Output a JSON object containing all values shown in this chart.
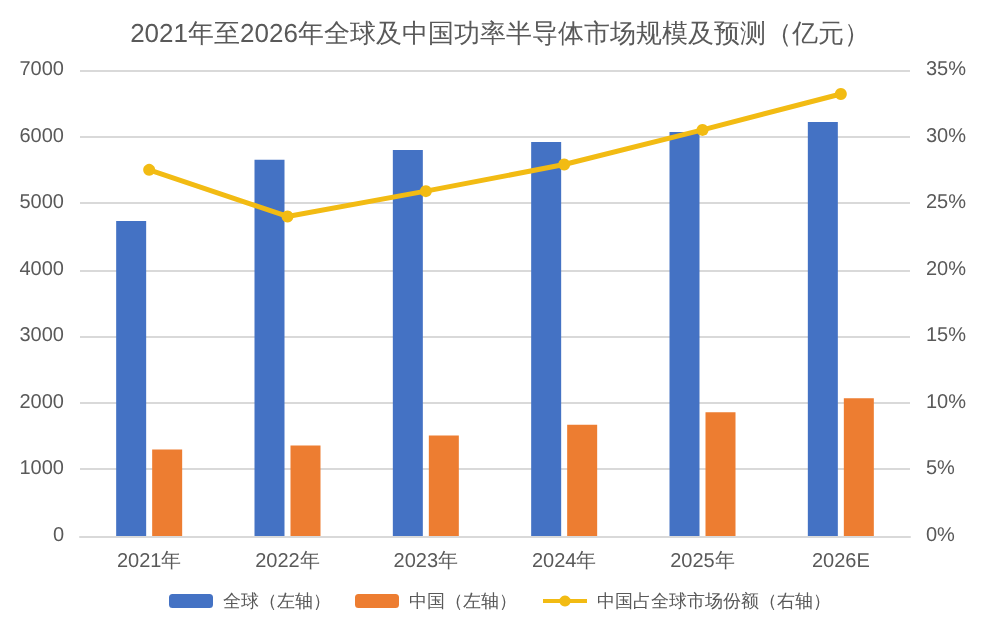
{
  "chart_data": {
    "type": "bar",
    "title": "2021年至2026年全球及中国功率半导体市场规模及预测（亿元）",
    "categories": [
      "2021年",
      "2022年",
      "2023年",
      "2024年",
      "2025年",
      "2026E"
    ],
    "series": [
      {
        "name": "全球（左轴）",
        "color": "#4472c4",
        "values": [
          4730,
          5650,
          5800,
          5920,
          6070,
          6220
        ]
      },
      {
        "name": "中国（左轴）",
        "color": "#ed7d31",
        "values": [
          1300,
          1360,
          1510,
          1670,
          1860,
          2070
        ]
      },
      {
        "name": "中国占全球市场份额（右轴）",
        "type": "line",
        "axis": "y2",
        "color": "#f2bb13",
        "marker": "circle",
        "values": [
          27.5,
          24.0,
          25.9,
          27.9,
          30.5,
          33.2
        ]
      }
    ],
    "ylim": [
      0,
      7000
    ],
    "yticks": [
      0,
      1000,
      2000,
      3000,
      4000,
      5000,
      6000,
      7000
    ],
    "y2lim": [
      0,
      35
    ],
    "y2ticks": [
      {
        "value": 0,
        "label": "0%"
      },
      {
        "value": 5,
        "label": "5%"
      },
      {
        "value": 10,
        "label": "10%"
      },
      {
        "value": 15,
        "label": "15%"
      },
      {
        "value": 20,
        "label": "20%"
      },
      {
        "value": 25,
        "label": "25%"
      },
      {
        "value": 30,
        "label": "30%"
      },
      {
        "value": 35,
        "label": "35%"
      }
    ],
    "grid": "y",
    "legend": "bottom"
  }
}
